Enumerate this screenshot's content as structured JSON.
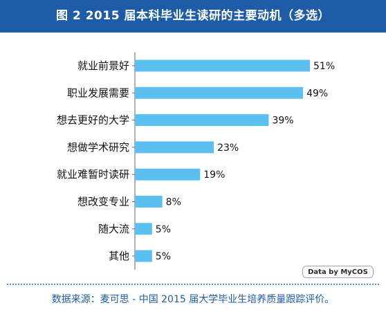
{
  "chart_data": {
    "type": "bar",
    "orientation": "horizontal",
    "title": "图 2  2015 届本科毕业生读研的主要动机（多选）",
    "categories": [
      "就业前景好",
      "职业发展需要",
      "想去更好的大学",
      "想做学术研究",
      "就业难暂时读研",
      "想改变专业",
      "随大流",
      "其他"
    ],
    "values": [
      51,
      49,
      39,
      23,
      19,
      8,
      5,
      5
    ],
    "value_labels": [
      "51%",
      "49%",
      "39%",
      "23%",
      "19%",
      "8%",
      "5%",
      "5%"
    ],
    "unit": "%",
    "xlim": [
      0,
      51
    ],
    "grid": false,
    "bar_color": "#5bc0f0",
    "axis_color": "#666666"
  },
  "badge": {
    "text": "Data by MyCOS"
  },
  "source": {
    "text": "数据来源：麦可思 - 中国 2015 届大学毕业生培养质量跟踪评价。"
  },
  "colors": {
    "title_bg": "#1f5ca8",
    "title_fg": "#ffffff",
    "source_fg": "#1f5ca8"
  }
}
